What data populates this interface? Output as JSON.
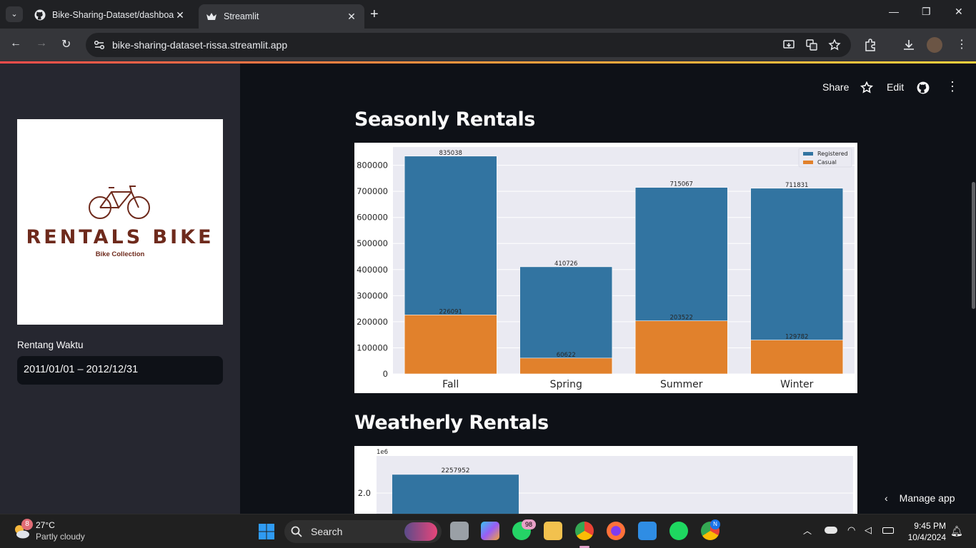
{
  "browser": {
    "tabs": [
      {
        "title": "Bike-Sharing-Dataset/dashboar",
        "active": false,
        "icon": "github-icon"
      },
      {
        "title": "Streamlit",
        "active": true,
        "icon": "streamlit-icon"
      }
    ],
    "url": "bike-sharing-dataset-rissa.streamlit.app"
  },
  "sidebar": {
    "logo": {
      "brand": "RENTALS BIKE",
      "tagline": "Bike Collection"
    },
    "date_range": {
      "label": "Rentang Waktu",
      "value": "2011/01/01 – 2012/12/31"
    }
  },
  "header_actions": {
    "share": "Share",
    "edit": "Edit"
  },
  "sections": {
    "seasonal_title": "Seasonly Rentals",
    "weather_title": "Weatherly Rentals"
  },
  "manage_app": "Manage app",
  "chart_data": [
    {
      "type": "bar",
      "categories": [
        "Fall",
        "Spring",
        "Summer",
        "Winter"
      ],
      "series": [
        {
          "name": "Registered",
          "values": [
            835038,
            410726,
            715067,
            711831
          ],
          "color": "#3274a1"
        },
        {
          "name": "Casual",
          "values": [
            226091,
            60622,
            203522,
            129782
          ],
          "color": "#e1812c"
        }
      ],
      "ylim": [
        0,
        870000
      ],
      "yticks": [
        0,
        100000,
        200000,
        300000,
        400000,
        500000,
        600000,
        700000,
        800000
      ],
      "legend": "top-right",
      "grid": true
    },
    {
      "type": "bar",
      "scale_label": "1e6",
      "ytick_labels": [
        "2.0"
      ],
      "visible_values": [
        2257952
      ],
      "series_color": "#3274a1"
    }
  ],
  "taskbar": {
    "weather": {
      "temp": "27°C",
      "desc": "Partly cloudy",
      "badge": "8"
    },
    "search": "Search",
    "whatsapp_badge": "98",
    "chrome_badge": "N",
    "time": "9:45 PM",
    "date": "10/4/2024"
  },
  "colors": {
    "app_bg": "#0e1117",
    "sidebar_bg": "#262730",
    "accent": "#ff4b4b"
  }
}
